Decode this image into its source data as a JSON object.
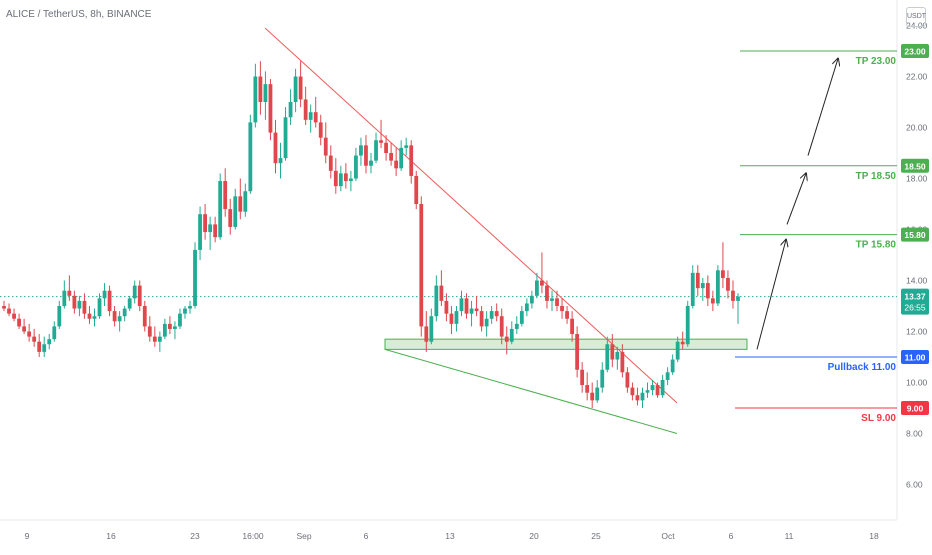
{
  "title": "ALICE / TetherUS, 8h, BINANCE",
  "currency_badge": "USDT",
  "colors": {
    "up": "#22ab94",
    "down": "#e0474c",
    "tp_line": "#4caf50",
    "pullback": "#2962ff",
    "sl": "#f23645",
    "trendline_red": "#f05b5b",
    "trendline_green": "#4caf50",
    "axis_text": "#6b6e78"
  },
  "chart_data": {
    "type": "candlestick",
    "symbol": "ALICE / TetherUS",
    "timeframe": "8h",
    "exchange": "BINANCE",
    "grid": false,
    "x_ticks": [
      "9",
      "16",
      "23",
      "16:00",
      "Sep",
      "6",
      "13",
      "20",
      "25",
      "Oct",
      "6",
      "11",
      "18"
    ],
    "y_ticks": [
      "24.00",
      "22.00",
      "20.00",
      "18.00",
      "16.00",
      "14.00",
      "12.00",
      "10.00",
      "8.00",
      "6.00"
    ],
    "last_price": "13.37",
    "countdown": "26:55",
    "levels": [
      {
        "label": "TP 23.00",
        "tag": "23.00",
        "value": 23.0,
        "kind": "tp"
      },
      {
        "label": "TP 18.50",
        "tag": "18.50",
        "value": 18.5,
        "kind": "tp"
      },
      {
        "label": "TP 15.80",
        "tag": "15.80",
        "value": 15.8,
        "kind": "tp"
      },
      {
        "label": "Pullback 11.00",
        "tag": "11.00",
        "value": 11.0,
        "kind": "pullback"
      },
      {
        "label": "SL 9.00",
        "tag": "9.00",
        "value": 9.0,
        "kind": "sl"
      }
    ],
    "support_zone": [
      11.3,
      11.7
    ],
    "ohlc_approx": [
      [
        13.0,
        13.2,
        12.8,
        12.9
      ],
      [
        12.9,
        13.1,
        12.6,
        12.7
      ],
      [
        12.7,
        12.9,
        12.4,
        12.5
      ],
      [
        12.5,
        12.7,
        12.1,
        12.2
      ],
      [
        12.2,
        12.5,
        11.9,
        12.0
      ],
      [
        12.0,
        12.3,
        11.6,
        11.8
      ],
      [
        11.8,
        12.1,
        11.4,
        11.6
      ],
      [
        11.6,
        11.9,
        11.0,
        11.2
      ],
      [
        11.2,
        11.8,
        11.0,
        11.5
      ],
      [
        11.5,
        11.9,
        11.3,
        11.7
      ],
      [
        11.7,
        12.4,
        11.6,
        12.2
      ],
      [
        12.2,
        13.2,
        12.1,
        13.0
      ],
      [
        13.0,
        14.0,
        12.9,
        13.6
      ],
      [
        13.6,
        14.2,
        13.2,
        13.4
      ],
      [
        13.4,
        13.6,
        12.7,
        12.9
      ],
      [
        12.9,
        13.4,
        12.6,
        13.2
      ],
      [
        13.2,
        13.5,
        12.5,
        12.7
      ],
      [
        12.7,
        13.0,
        12.3,
        12.5
      ],
      [
        12.5,
        12.9,
        12.2,
        12.6
      ],
      [
        12.6,
        13.5,
        12.5,
        13.3
      ],
      [
        13.3,
        13.9,
        13.0,
        13.6
      ],
      [
        13.6,
        13.8,
        12.6,
        12.8
      ],
      [
        12.8,
        13.0,
        12.2,
        12.4
      ],
      [
        12.4,
        12.8,
        12.0,
        12.6
      ],
      [
        12.6,
        13.0,
        12.4,
        12.9
      ],
      [
        12.9,
        13.4,
        12.8,
        13.3
      ],
      [
        13.3,
        14.0,
        13.1,
        13.8
      ],
      [
        13.8,
        14.0,
        12.8,
        13.0
      ],
      [
        13.0,
        13.2,
        12.0,
        12.2
      ],
      [
        12.2,
        12.6,
        11.6,
        11.8
      ],
      [
        11.8,
        12.2,
        11.4,
        11.6
      ],
      [
        11.6,
        12.0,
        11.2,
        11.8
      ],
      [
        11.8,
        12.5,
        11.7,
        12.3
      ],
      [
        12.3,
        12.6,
        11.9,
        12.1
      ],
      [
        12.1,
        12.4,
        11.7,
        12.2
      ],
      [
        12.2,
        12.9,
        12.1,
        12.7
      ],
      [
        12.7,
        13.0,
        12.5,
        12.9
      ],
      [
        12.9,
        13.2,
        12.7,
        13.0
      ],
      [
        13.0,
        15.5,
        12.9,
        15.2
      ],
      [
        15.2,
        16.9,
        14.8,
        16.6
      ],
      [
        16.6,
        17.0,
        15.6,
        15.9
      ],
      [
        15.9,
        16.5,
        15.2,
        16.2
      ],
      [
        16.2,
        16.5,
        15.5,
        15.7
      ],
      [
        15.7,
        18.2,
        15.6,
        17.9
      ],
      [
        17.9,
        18.4,
        16.5,
        16.8
      ],
      [
        16.8,
        17.2,
        15.8,
        16.1
      ],
      [
        16.1,
        17.6,
        16.0,
        17.3
      ],
      [
        17.3,
        18.0,
        16.4,
        16.7
      ],
      [
        16.7,
        17.8,
        16.5,
        17.5
      ],
      [
        17.5,
        20.5,
        17.4,
        20.2
      ],
      [
        20.2,
        22.5,
        20.0,
        22.0
      ],
      [
        22.0,
        22.6,
        20.5,
        21.0
      ],
      [
        21.0,
        22.2,
        20.3,
        21.7
      ],
      [
        21.7,
        21.9,
        19.5,
        19.8
      ],
      [
        19.8,
        20.3,
        18.2,
        18.6
      ],
      [
        18.6,
        19.4,
        18.0,
        18.8
      ],
      [
        18.8,
        20.8,
        18.7,
        20.4
      ],
      [
        20.4,
        21.5,
        20.1,
        21.0
      ],
      [
        21.0,
        22.3,
        20.6,
        22.0
      ],
      [
        22.0,
        22.6,
        20.8,
        21.1
      ],
      [
        21.1,
        21.6,
        20.1,
        20.3
      ],
      [
        20.3,
        20.9,
        19.8,
        20.6
      ],
      [
        20.6,
        21.2,
        20.0,
        20.2
      ],
      [
        20.2,
        20.5,
        19.3,
        19.6
      ],
      [
        19.6,
        20.2,
        18.6,
        18.9
      ],
      [
        18.9,
        19.3,
        18.0,
        18.3
      ],
      [
        18.3,
        18.8,
        17.4,
        17.7
      ],
      [
        17.7,
        18.5,
        17.5,
        18.2
      ],
      [
        18.2,
        18.6,
        17.6,
        17.9
      ],
      [
        17.9,
        18.3,
        17.5,
        18.0
      ],
      [
        18.0,
        19.2,
        17.9,
        18.9
      ],
      [
        18.9,
        19.6,
        18.5,
        19.3
      ],
      [
        19.3,
        19.7,
        18.2,
        18.5
      ],
      [
        18.5,
        19.0,
        18.2,
        18.7
      ],
      [
        18.7,
        19.8,
        18.6,
        19.5
      ],
      [
        19.5,
        20.3,
        19.2,
        19.4
      ],
      [
        19.4,
        19.7,
        18.7,
        19.0
      ],
      [
        19.0,
        19.4,
        18.5,
        18.7
      ],
      [
        18.7,
        19.2,
        18.1,
        18.4
      ],
      [
        18.4,
        19.5,
        18.3,
        19.2
      ],
      [
        19.2,
        19.6,
        18.9,
        19.3
      ],
      [
        19.3,
        19.5,
        17.8,
        18.1
      ],
      [
        18.1,
        18.3,
        16.8,
        17.0
      ],
      [
        17.0,
        17.3,
        11.8,
        12.2
      ],
      [
        12.2,
        12.8,
        11.2,
        11.6
      ],
      [
        11.6,
        12.9,
        11.5,
        12.6
      ],
      [
        12.6,
        14.2,
        12.4,
        13.8
      ],
      [
        13.8,
        14.4,
        13.0,
        13.2
      ],
      [
        13.2,
        13.5,
        12.4,
        12.7
      ],
      [
        12.7,
        13.0,
        11.9,
        12.3
      ],
      [
        12.3,
        13.0,
        12.0,
        12.8
      ],
      [
        12.8,
        13.6,
        12.6,
        13.3
      ],
      [
        13.3,
        13.5,
        12.5,
        12.7
      ],
      [
        12.7,
        13.2,
        12.2,
        12.9
      ],
      [
        12.9,
        13.4,
        12.6,
        12.8
      ],
      [
        12.8,
        13.0,
        12.0,
        12.2
      ],
      [
        12.2,
        12.8,
        11.8,
        12.5
      ],
      [
        12.5,
        13.0,
        12.3,
        12.8
      ],
      [
        12.8,
        13.1,
        12.4,
        12.6
      ],
      [
        12.6,
        12.9,
        11.5,
        11.8
      ],
      [
        11.8,
        12.2,
        11.1,
        11.6
      ],
      [
        11.6,
        12.4,
        11.5,
        12.1
      ],
      [
        12.1,
        12.6,
        11.9,
        12.3
      ],
      [
        12.3,
        13.0,
        12.2,
        12.8
      ],
      [
        12.8,
        13.3,
        12.6,
        13.1
      ],
      [
        13.1,
        13.6,
        12.9,
        13.4
      ],
      [
        13.4,
        14.3,
        13.3,
        14.0
      ],
      [
        14.0,
        15.1,
        13.5,
        13.8
      ],
      [
        13.8,
        14.0,
        12.9,
        13.2
      ],
      [
        13.2,
        13.6,
        12.8,
        13.3
      ],
      [
        13.3,
        13.6,
        12.8,
        13.0
      ],
      [
        13.0,
        13.3,
        12.5,
        12.8
      ],
      [
        12.8,
        13.0,
        12.3,
        12.5
      ],
      [
        12.5,
        12.8,
        11.6,
        11.9
      ],
      [
        11.9,
        12.2,
        10.2,
        10.5
      ],
      [
        10.5,
        10.8,
        9.6,
        9.9
      ],
      [
        9.9,
        10.4,
        9.3,
        9.6
      ],
      [
        9.6,
        10.0,
        9.0,
        9.3
      ],
      [
        9.3,
        10.1,
        9.2,
        9.8
      ],
      [
        9.8,
        10.8,
        9.6,
        10.5
      ],
      [
        10.5,
        11.8,
        10.4,
        11.5
      ],
      [
        11.5,
        11.9,
        10.6,
        10.9
      ],
      [
        10.9,
        11.4,
        10.5,
        11.2
      ],
      [
        11.2,
        11.5,
        10.2,
        10.4
      ],
      [
        10.4,
        10.6,
        9.6,
        9.8
      ],
      [
        9.8,
        10.0,
        9.3,
        9.5
      ],
      [
        9.5,
        9.8,
        9.1,
        9.3
      ],
      [
        9.3,
        9.8,
        9.0,
        9.6
      ],
      [
        9.6,
        10.0,
        9.4,
        9.7
      ],
      [
        9.7,
        10.1,
        9.5,
        9.9
      ],
      [
        9.9,
        10.0,
        9.4,
        9.5
      ],
      [
        9.5,
        10.3,
        9.4,
        10.1
      ],
      [
        10.1,
        10.6,
        9.9,
        10.4
      ],
      [
        10.4,
        11.1,
        10.3,
        10.9
      ],
      [
        10.9,
        11.8,
        10.8,
        11.6
      ],
      [
        11.6,
        12.0,
        11.3,
        11.5
      ],
      [
        11.5,
        13.2,
        11.4,
        13.0
      ],
      [
        13.0,
        14.6,
        12.9,
        14.3
      ],
      [
        14.3,
        14.6,
        13.4,
        13.7
      ],
      [
        13.7,
        14.1,
        13.2,
        13.9
      ],
      [
        13.9,
        14.2,
        13.0,
        13.3
      ],
      [
        13.3,
        13.6,
        12.8,
        13.1
      ],
      [
        13.1,
        14.6,
        13.0,
        14.4
      ],
      [
        14.4,
        15.5,
        13.7,
        14.1
      ],
      [
        14.1,
        14.4,
        13.3,
        13.6
      ],
      [
        13.6,
        14.0,
        12.9,
        13.2
      ],
      [
        13.2,
        13.5,
        12.3,
        13.37
      ]
    ]
  }
}
